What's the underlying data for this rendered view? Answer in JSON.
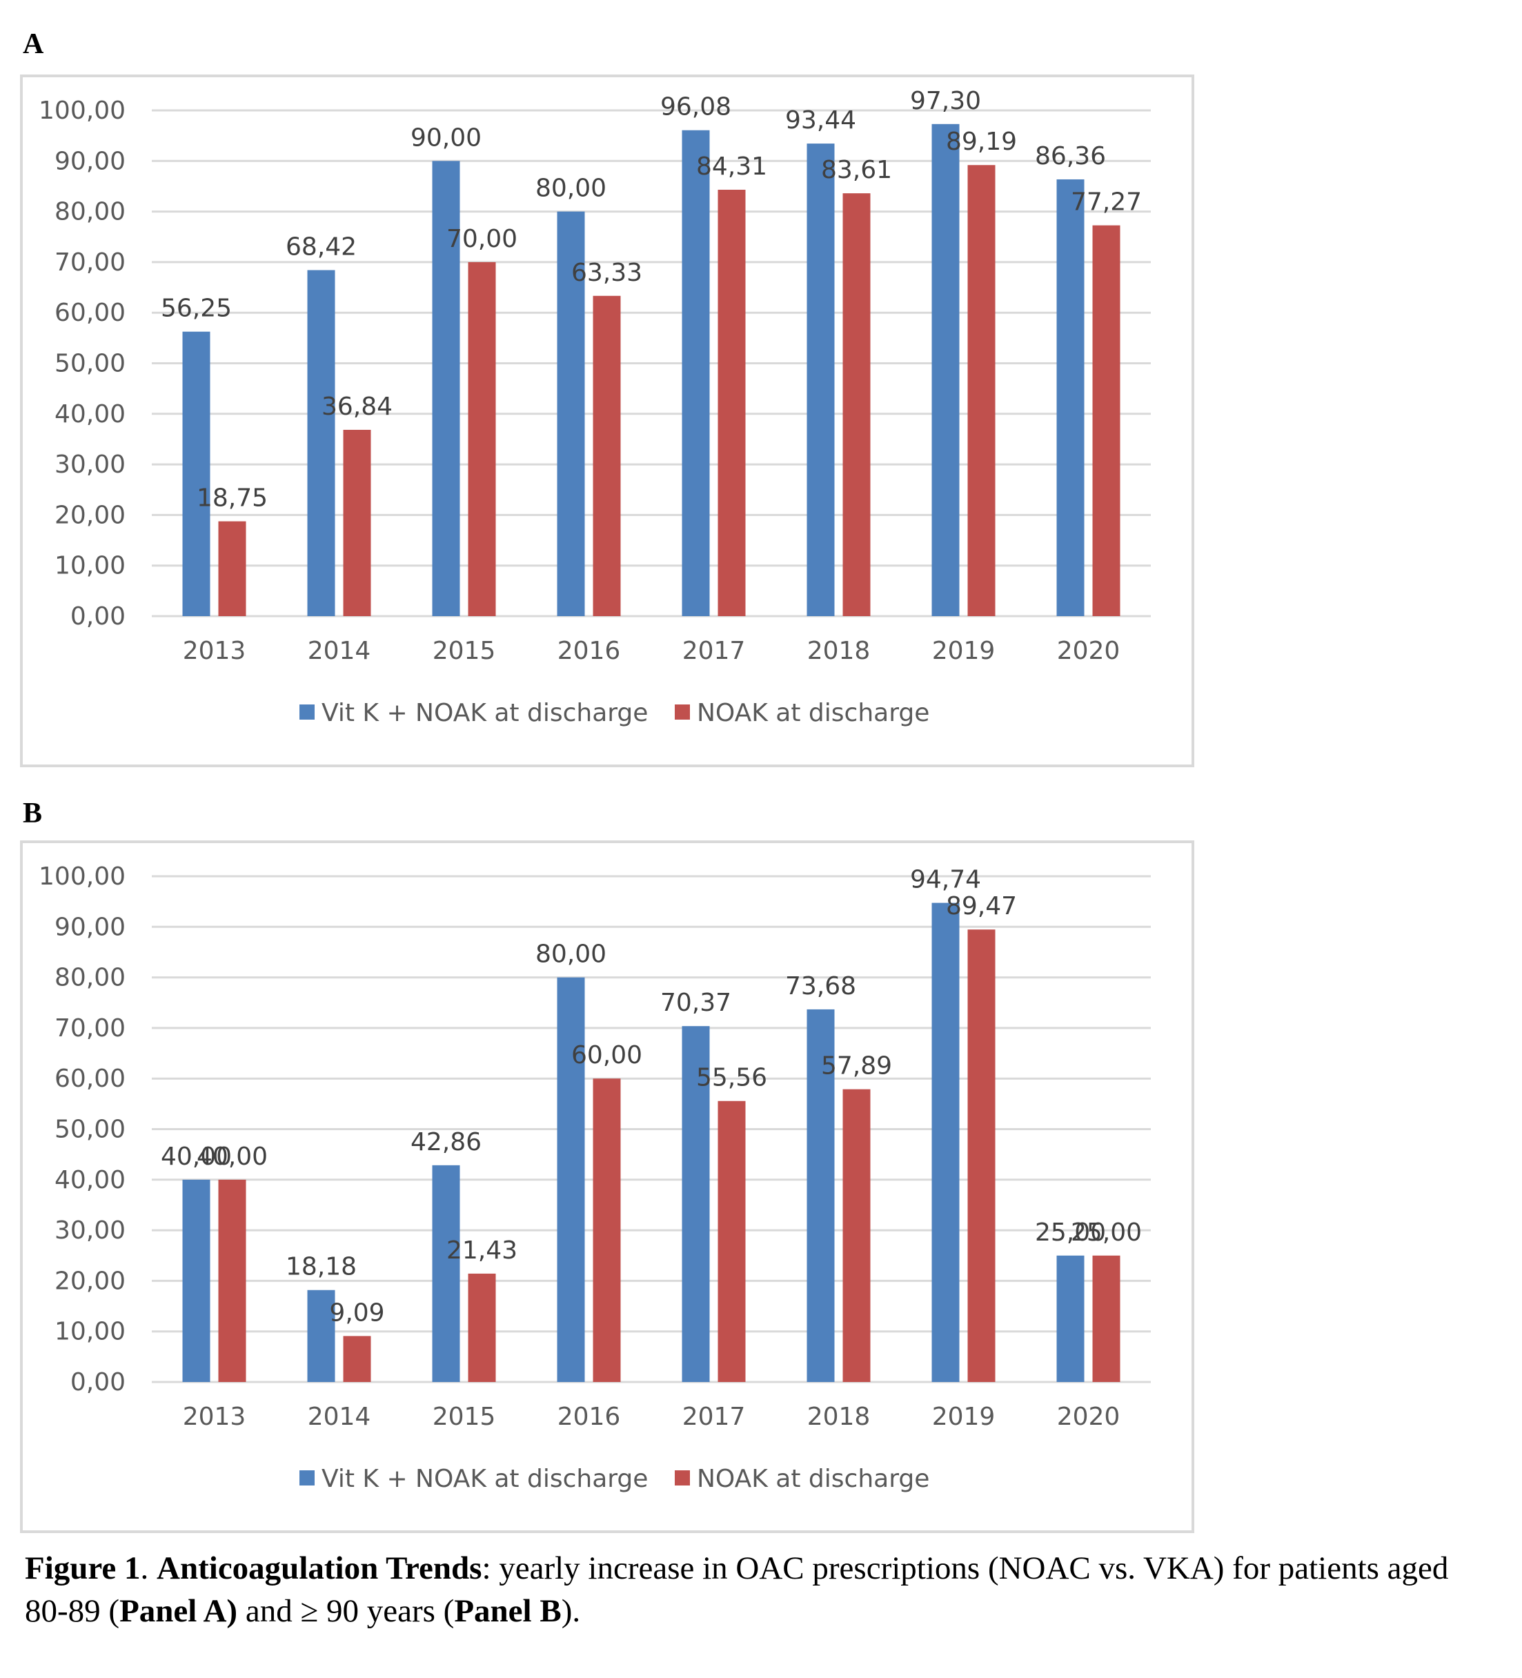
{
  "chart_data": [
    {
      "panel_label": "A",
      "type": "bar",
      "categories": [
        "2013",
        "2014",
        "2015",
        "2016",
        "2017",
        "2018",
        "2019",
        "2020"
      ],
      "series": [
        {
          "name": "Vit K + NOAK at discharge",
          "color": "#4F81BD",
          "values": [
            56.25,
            68.42,
            90.0,
            80.0,
            96.08,
            93.44,
            97.3,
            86.36
          ],
          "labels": [
            "56,25",
            "68,42",
            "90,00",
            "80,00",
            "96,08",
            "93,44",
            "97,30",
            "86,36"
          ]
        },
        {
          "name": "NOAK at discharge",
          "color": "#C0504D",
          "values": [
            18.75,
            36.84,
            70.0,
            63.33,
            84.31,
            83.61,
            89.19,
            77.27
          ],
          "labels": [
            "18,75",
            "36,84",
            "70,00",
            "63,33",
            "84,31",
            "83,61",
            "89,19",
            "77,27"
          ]
        }
      ],
      "ylim": [
        0,
        100
      ],
      "yticks": [
        "0,00",
        "10,00",
        "20,00",
        "30,00",
        "40,00",
        "50,00",
        "60,00",
        "70,00",
        "80,00",
        "90,00",
        "100,00"
      ],
      "grid": true,
      "legend_position": "bottom"
    },
    {
      "panel_label": "B",
      "type": "bar",
      "categories": [
        "2013",
        "2014",
        "2015",
        "2016",
        "2017",
        "2018",
        "2019",
        "2020"
      ],
      "series": [
        {
          "name": "Vit K + NOAK at discharge",
          "color": "#4F81BD",
          "values": [
            40.0,
            18.18,
            42.86,
            80.0,
            70.37,
            73.68,
            94.74,
            25.0
          ],
          "labels": [
            "40,00",
            "18,18",
            "42,86",
            "80,00",
            "70,37",
            "73,68",
            "94,74",
            "25,00"
          ]
        },
        {
          "name": "NOAK at discharge",
          "color": "#C0504D",
          "values": [
            40.0,
            9.09,
            21.43,
            60.0,
            55.56,
            57.89,
            89.47,
            25.0
          ],
          "labels": [
            "40,00",
            "9,09",
            "21,43",
            "60,00",
            "55,56",
            "57,89",
            "89,47",
            "25,00"
          ]
        }
      ],
      "ylim": [
        0,
        100
      ],
      "yticks": [
        "0,00",
        "10,00",
        "20,00",
        "30,00",
        "40,00",
        "50,00",
        "60,00",
        "70,00",
        "80,00",
        "90,00",
        "100,00"
      ],
      "grid": true,
      "legend_position": "bottom"
    }
  ],
  "caption": {
    "figure_label": "Figure 1",
    "sep1": ". ",
    "title": "Anticoagulation Trends",
    "text1": ": yearly increase in OAC prescriptions (NOAC vs. VKA) for patients aged 80-89 (",
    "panel_a": "Panel A)",
    "text2": " and ≥ 90 years (",
    "panel_b": "Panel B",
    "text3": ")."
  }
}
